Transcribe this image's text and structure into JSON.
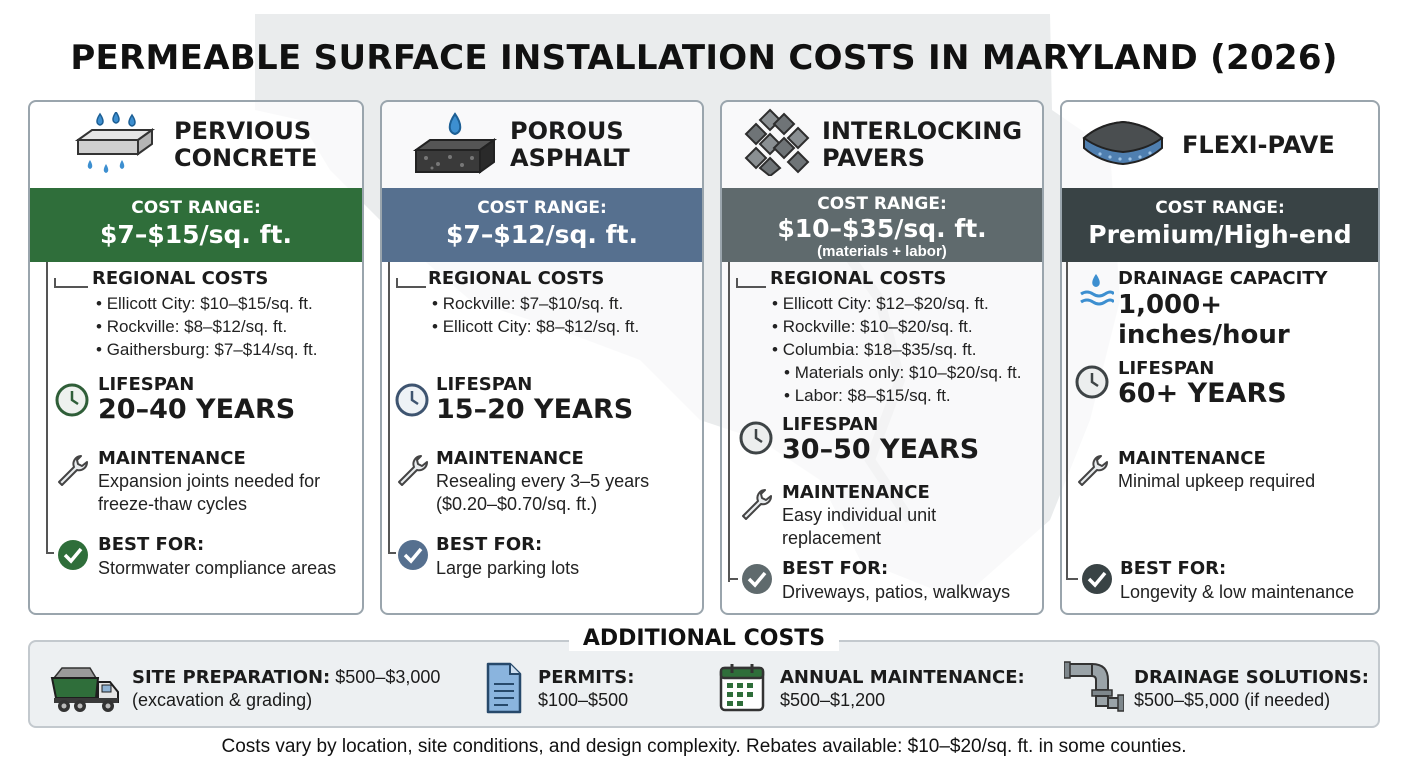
{
  "title": "PERMEABLE SURFACE INSTALLATION COSTS IN MARYLAND (2026)",
  "cards": [
    {
      "name_line1": "PERVIOUS",
      "name_line2": "CONCRETE",
      "cost_label": "COST RANGE:",
      "cost_value": "$7–$15/sq. ft.",
      "band_color": "#2f6e3a",
      "regional_heading": "REGIONAL COSTS",
      "regional": [
        "Ellicott City: $10–$15/sq. ft.",
        "Rockville: $8–$12/sq. ft.",
        "Gaithersburg: $7–$14/sq. ft."
      ],
      "lifespan_heading": "LIFESPAN",
      "lifespan_value": "20–40 YEARS",
      "maintenance_heading": "MAINTENANCE",
      "maintenance_line1": "Expansion joints needed for",
      "maintenance_line2": "freeze-thaw cycles",
      "best_heading": "BEST FOR:",
      "best_value": "Stormwater compliance areas",
      "icon": "pervious-concrete-icon"
    },
    {
      "name_line1": "POROUS",
      "name_line2": "ASPHALT",
      "cost_label": "COST RANGE:",
      "cost_value": "$7–$12/sq. ft.",
      "band_color": "#56708f",
      "regional_heading": "REGIONAL COSTS",
      "regional": [
        "Rockville: $7–$10/sq. ft.",
        "Ellicott City: $8–$12/sq. ft."
      ],
      "lifespan_heading": "LIFESPAN",
      "lifespan_value": "15–20 YEARS",
      "maintenance_heading": "MAINTENANCE",
      "maintenance_line1": "Resealing every 3–5 years",
      "maintenance_line2": "($0.20–$0.70/sq. ft.)",
      "best_heading": "BEST FOR:",
      "best_value": "Large parking lots",
      "icon": "porous-asphalt-icon"
    },
    {
      "name_line1": "INTERLOCKING",
      "name_line2": "PAVERS",
      "cost_label": "COST RANGE:",
      "cost_value": "$10–$35/sq. ft.",
      "cost_note": "(materials + labor)",
      "band_color": "#5f6a6d",
      "regional_heading": "REGIONAL COSTS",
      "regional": [
        "Ellicott City: $12–$20/sq. ft.",
        "Rockville: $10–$20/sq. ft.",
        "Columbia: $18–$35/sq. ft."
      ],
      "regional_sub": [
        "Materials only: $10–$20/sq. ft.",
        "Labor: $8–$15/sq. ft."
      ],
      "lifespan_heading": "LIFESPAN",
      "lifespan_value": "30–50 YEARS",
      "maintenance_heading": "MAINTENANCE",
      "maintenance_line1": "Easy individual unit",
      "maintenance_line2": "replacement",
      "best_heading": "BEST FOR:",
      "best_value": "Driveways, patios, walkways",
      "icon": "interlocking-pavers-icon"
    },
    {
      "name_line1": "FLEXI-PAVE",
      "cost_label": "COST RANGE:",
      "cost_value": "Premium/High-end",
      "band_color": "#394345",
      "drainage_heading": "DRAINAGE CAPACITY",
      "drainage_value": "1,000+ inches/hour",
      "lifespan_heading": "LIFESPAN",
      "lifespan_value": "60+ YEARS",
      "maintenance_heading": "MAINTENANCE",
      "maintenance_line1": "Minimal upkeep required",
      "best_heading": "BEST FOR:",
      "best_value": "Longevity & low maintenance",
      "icon": "flexi-pave-icon"
    }
  ],
  "additional": {
    "title": "ADDITIONAL COSTS",
    "items": [
      {
        "label": "SITE PREPARATION:",
        "value": "$500–$3,000",
        "line2": "(excavation & grading)",
        "icon": "dump-truck-icon"
      },
      {
        "label": "PERMITS:",
        "line2": "$100–$500",
        "icon": "document-icon"
      },
      {
        "label": "ANNUAL MAINTENANCE:",
        "line2": "$500–$1,200",
        "icon": "calendar-icon"
      },
      {
        "label": "DRAINAGE SOLUTIONS:",
        "line2": "$500–$5,000 (if needed)",
        "icon": "pipe-icon"
      }
    ]
  },
  "footer": "Costs vary by location, site conditions, and design complexity. Rebates available: $10–$20/sq. ft. in some counties.",
  "colors": {
    "green": "#2f6e3a",
    "blue_gray": "#56708f",
    "gray": "#5f6a6d",
    "dark": "#394345",
    "icon_blue": "#3d8fd0"
  }
}
